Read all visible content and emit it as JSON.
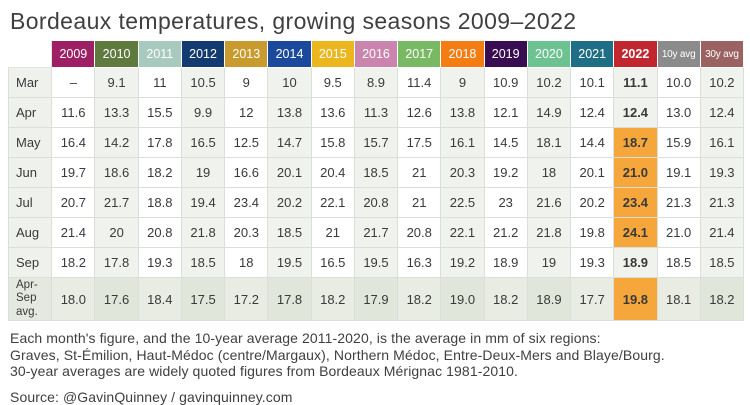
{
  "title": "Bordeaux temperatures, growing seasons 2009–2022",
  "colors": {
    "highlight_orange": "#f6a73c",
    "row_tint": "#eff2ed",
    "label_col_bg": "#eef1ec",
    "summary_row_bg": "#e9ece3",
    "grid_line": "#dcdeda",
    "text": "#3a3a3a",
    "header_text": "#ffffff"
  },
  "table": {
    "columns": [
      {
        "label": "2009",
        "color": "#9e2064"
      },
      {
        "label": "2010",
        "color": "#5e7a3e"
      },
      {
        "label": "2011",
        "color": "#a7c9be"
      },
      {
        "label": "2012",
        "color": "#143a72"
      },
      {
        "label": "2013",
        "color": "#c99b2e"
      },
      {
        "label": "2014",
        "color": "#1b4a9c"
      },
      {
        "label": "2015",
        "color": "#ecb71e"
      },
      {
        "label": "2016",
        "color": "#cb84ae"
      },
      {
        "label": "2017",
        "color": "#7ab964"
      },
      {
        "label": "2018",
        "color": "#f47d13"
      },
      {
        "label": "2019",
        "color": "#380d52"
      },
      {
        "label": "2020",
        "color": "#6cc391"
      },
      {
        "label": "2021",
        "color": "#1e6f85"
      },
      {
        "label": "2022",
        "color": "#c2262e",
        "bold": true
      },
      {
        "label": "10y avg",
        "color": "#8b8b8b",
        "small": true
      },
      {
        "label": "30y avg",
        "color": "#9a6362",
        "small": true
      }
    ],
    "highlight_col_label": "2022",
    "rows": [
      {
        "label": "Mar",
        "values": [
          "–",
          "9.1",
          "11",
          "10.5",
          "9",
          "10",
          "9.5",
          "8.9",
          "11.4",
          "9",
          "10.9",
          "10.2",
          "10.1",
          "11.1",
          "10.0",
          "10.2"
        ],
        "highlight_2022": false,
        "summary": false
      },
      {
        "label": "Apr",
        "values": [
          "11.6",
          "13.3",
          "15.5",
          "9.9",
          "12",
          "13.8",
          "13.6",
          "11.3",
          "12.6",
          "13.8",
          "12.1",
          "14.9",
          "12.4",
          "12.4",
          "13.0",
          "12.4"
        ],
        "highlight_2022": false,
        "summary": false
      },
      {
        "label": "May",
        "values": [
          "16.4",
          "14.2",
          "17.8",
          "16.5",
          "12.5",
          "14.7",
          "15.8",
          "15.7",
          "17.5",
          "16.1",
          "14.5",
          "18.1",
          "14.4",
          "18.7",
          "15.9",
          "16.1"
        ],
        "highlight_2022": true,
        "summary": false
      },
      {
        "label": "Jun",
        "values": [
          "19.7",
          "18.6",
          "18.2",
          "19",
          "16.6",
          "20.1",
          "20.4",
          "18.5",
          "21",
          "20.3",
          "19.2",
          "18",
          "20.1",
          "21.0",
          "19.1",
          "19.3"
        ],
        "highlight_2022": true,
        "summary": false
      },
      {
        "label": "Jul",
        "values": [
          "20.7",
          "21.7",
          "18.8",
          "19.4",
          "23.4",
          "20.2",
          "22.1",
          "20.8",
          "21",
          "22.5",
          "23",
          "21.6",
          "20.2",
          "23.4",
          "21.3",
          "21.3"
        ],
        "highlight_2022": true,
        "summary": false
      },
      {
        "label": "Aug",
        "values": [
          "21.4",
          "20",
          "20.8",
          "21.8",
          "20.3",
          "18.5",
          "21",
          "21.7",
          "20.8",
          "22.1",
          "21.2",
          "21.8",
          "19.8",
          "24.1",
          "21.0",
          "21.4"
        ],
        "highlight_2022": true,
        "summary": false
      },
      {
        "label": "Sep",
        "values": [
          "18.2",
          "17.8",
          "19.3",
          "18.5",
          "18",
          "19.5",
          "16.5",
          "19.5",
          "16.3",
          "19.2",
          "18.9",
          "19",
          "19.3",
          "18.9",
          "18.5",
          "18.5"
        ],
        "highlight_2022": false,
        "summary": false
      },
      {
        "label": "Apr-Sep avg.",
        "values": [
          "18.0",
          "17.6",
          "18.4",
          "17.5",
          "17.2",
          "17.8",
          "18.2",
          "17.9",
          "18.2",
          "19.0",
          "18.2",
          "18.9",
          "17.7",
          "19.8",
          "18.1",
          "18.2"
        ],
        "highlight_2022": true,
        "summary": true
      }
    ]
  },
  "footnote": {
    "line1": "Each month's figure, and the 10-year average 2011-2020, is the average in mm of six regions:",
    "line2": "Graves, St-Émilion, Haut-Médoc (centre/Margaux), Northern Médoc, Entre-Deux-Mers and Blaye/Bourg.",
    "line3": "30-year averages are widely quoted figures from Bordeaux Mérignac 1981-2010."
  },
  "source": "Source: @GavinQuinney / gavinquinney.com",
  "chart_data": {
    "type": "table",
    "title": "Bordeaux temperatures, growing seasons 2009–2022",
    "categories": [
      "2009",
      "2010",
      "2011",
      "2012",
      "2013",
      "2014",
      "2015",
      "2016",
      "2017",
      "2018",
      "2019",
      "2020",
      "2021",
      "2022",
      "10y avg",
      "30y avg"
    ],
    "series": [
      {
        "name": "Mar",
        "values": [
          null,
          9.1,
          11,
          10.5,
          9,
          10,
          9.5,
          8.9,
          11.4,
          9,
          10.9,
          10.2,
          10.1,
          11.1,
          10.0,
          10.2
        ]
      },
      {
        "name": "Apr",
        "values": [
          11.6,
          13.3,
          15.5,
          9.9,
          12,
          13.8,
          13.6,
          11.3,
          12.6,
          13.8,
          12.1,
          14.9,
          12.4,
          12.4,
          13.0,
          12.4
        ]
      },
      {
        "name": "May",
        "values": [
          16.4,
          14.2,
          17.8,
          16.5,
          12.5,
          14.7,
          15.8,
          15.7,
          17.5,
          16.1,
          14.5,
          18.1,
          14.4,
          18.7,
          15.9,
          16.1
        ]
      },
      {
        "name": "Jun",
        "values": [
          19.7,
          18.6,
          18.2,
          19,
          16.6,
          20.1,
          20.4,
          18.5,
          21,
          20.3,
          19.2,
          18,
          20.1,
          21.0,
          19.1,
          19.3
        ]
      },
      {
        "name": "Jul",
        "values": [
          20.7,
          21.7,
          18.8,
          19.4,
          23.4,
          20.2,
          22.1,
          20.8,
          21,
          22.5,
          23,
          21.6,
          20.2,
          23.4,
          21.3,
          21.3
        ]
      },
      {
        "name": "Aug",
        "values": [
          21.4,
          20,
          20.8,
          21.8,
          20.3,
          18.5,
          21,
          21.7,
          20.8,
          22.1,
          21.2,
          21.8,
          19.8,
          24.1,
          21.0,
          21.4
        ]
      },
      {
        "name": "Sep",
        "values": [
          18.2,
          17.8,
          19.3,
          18.5,
          18,
          19.5,
          16.5,
          19.5,
          16.3,
          19.2,
          18.9,
          19,
          19.3,
          18.9,
          18.5,
          18.5
        ]
      },
      {
        "name": "Apr-Sep avg.",
        "values": [
          18.0,
          17.6,
          18.4,
          17.5,
          17.2,
          17.8,
          18.2,
          17.9,
          18.2,
          19.0,
          18.2,
          18.9,
          17.7,
          19.8,
          18.1,
          18.2
        ]
      }
    ],
    "annotations": [
      "2022 column shown bold; May–Aug and Apr-Sep avg. 2022 cells highlighted orange"
    ]
  }
}
